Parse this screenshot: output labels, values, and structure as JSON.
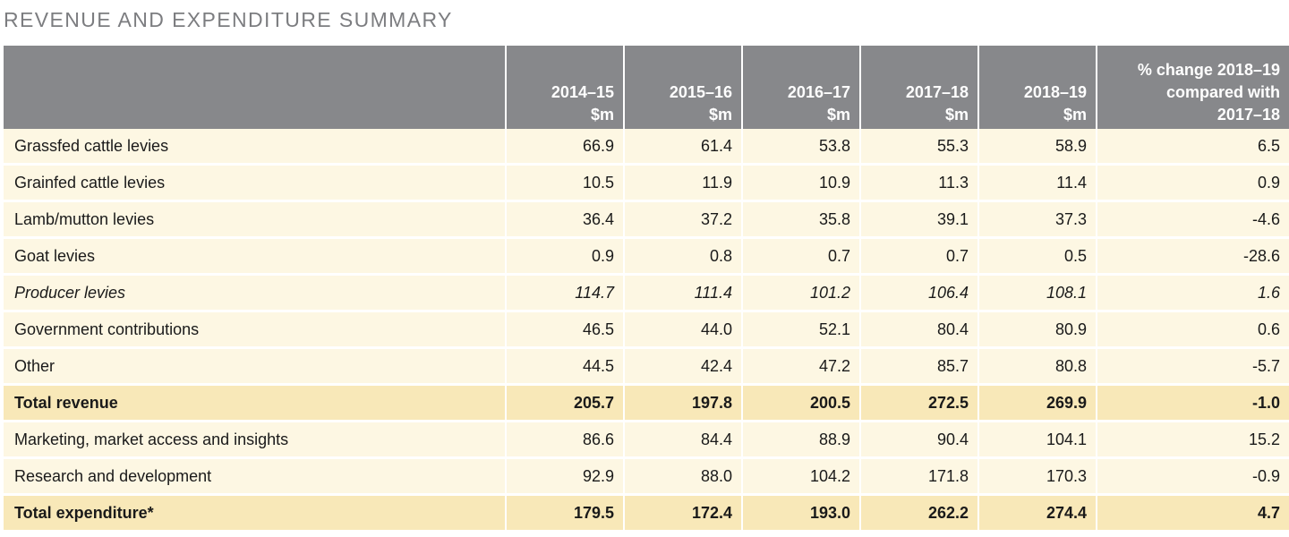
{
  "title": "REVENUE AND EXPENDITURE SUMMARY",
  "header": {
    "label": "",
    "years": [
      {
        "year": "2014–15",
        "unit": "$m"
      },
      {
        "year": "2015–16",
        "unit": "$m"
      },
      {
        "year": "2016–17",
        "unit": "$m"
      },
      {
        "year": "2017–18",
        "unit": "$m"
      },
      {
        "year": "2018–19",
        "unit": "$m"
      }
    ],
    "pct": [
      "% change 2018–19",
      "compared with",
      "2017–18"
    ]
  },
  "rows": [
    {
      "label": "Grassfed cattle levies",
      "values": [
        "66.9",
        "61.4",
        "53.8",
        "55.3",
        "58.9"
      ],
      "pct": "6.5",
      "style": "normal"
    },
    {
      "label": "Grainfed cattle levies",
      "values": [
        "10.5",
        "11.9",
        "10.9",
        "11.3",
        "11.4"
      ],
      "pct": "0.9",
      "style": "normal"
    },
    {
      "label": "Lamb/mutton levies",
      "values": [
        "36.4",
        "37.2",
        "35.8",
        "39.1",
        "37.3"
      ],
      "pct": "-4.6",
      "style": "normal"
    },
    {
      "label": "Goat levies",
      "values": [
        "0.9",
        "0.8",
        "0.7",
        "0.7",
        "0.5"
      ],
      "pct": "-28.6",
      "style": "normal"
    },
    {
      "label": "Producer levies",
      "values": [
        "114.7",
        "111.4",
        "101.2",
        "106.4",
        "108.1"
      ],
      "pct": "1.6",
      "style": "italic"
    },
    {
      "label": "Government contributions",
      "values": [
        "46.5",
        "44.0",
        "52.1",
        "80.4",
        "80.9"
      ],
      "pct": "0.6",
      "style": "normal"
    },
    {
      "label": "Other",
      "values": [
        "44.5",
        "42.4",
        "47.2",
        "85.7",
        "80.8"
      ],
      "pct": "-5.7",
      "style": "normal"
    },
    {
      "label": "Total revenue",
      "values": [
        "205.7",
        "197.8",
        "200.5",
        "272.5",
        "269.9"
      ],
      "pct": "-1.0",
      "style": "total"
    },
    {
      "label": "Marketing, market access and insights",
      "values": [
        "86.6",
        "84.4",
        "88.9",
        "90.4",
        "104.1"
      ],
      "pct": "15.2",
      "style": "normal"
    },
    {
      "label": "Research and development",
      "values": [
        "92.9",
        "88.0",
        "104.2",
        "171.8",
        "170.3"
      ],
      "pct": "-0.9",
      "style": "normal"
    },
    {
      "label": "Total expenditure*",
      "values": [
        "179.5",
        "172.4",
        "193.0",
        "262.2",
        "274.4"
      ],
      "pct": "4.7",
      "style": "total"
    }
  ],
  "colors": {
    "header_bg": "#87888b",
    "row_bg": "#fdf7e3",
    "total_bg": "#f8e8b8",
    "title_color": "#7c7d80"
  }
}
